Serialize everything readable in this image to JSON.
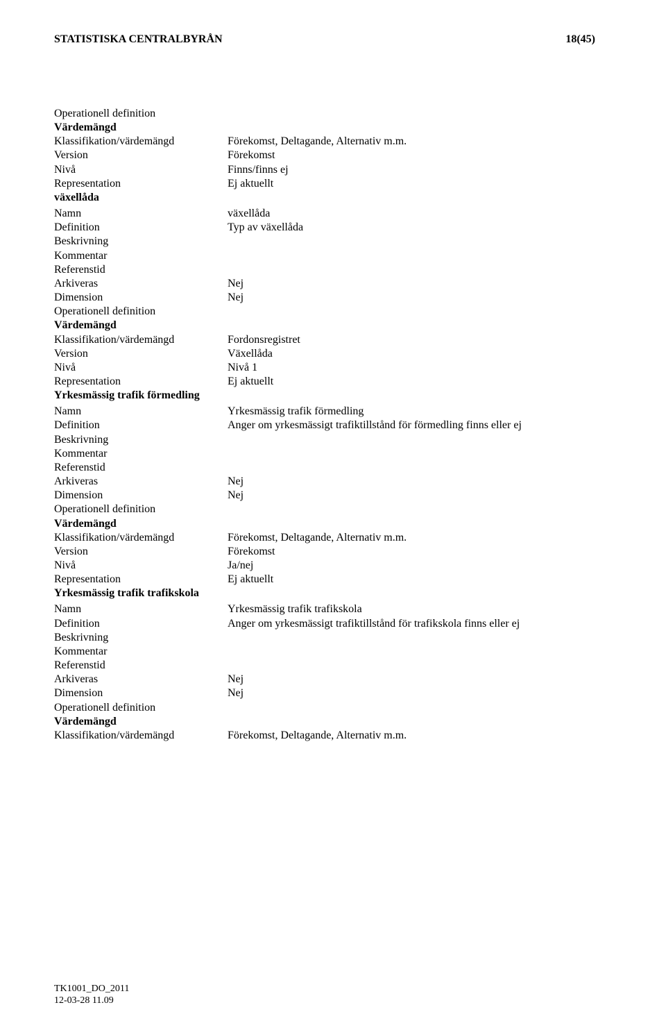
{
  "header": {
    "org": "STATISTISKA CENTRALBYRÅN",
    "page": "18(45)"
  },
  "blocks": [
    {
      "type": "row",
      "label": "Operationell definition",
      "value": ""
    },
    {
      "type": "heading",
      "text": "Värdemängd"
    },
    {
      "type": "row",
      "label": "Klassifikation/värdemängd",
      "value": "Förekomst, Deltagande, Alternativ m.m."
    },
    {
      "type": "row",
      "label": "Version",
      "value": "Förekomst"
    },
    {
      "type": "row",
      "label": "Nivå",
      "value": "Finns/finns ej"
    },
    {
      "type": "row",
      "label": "Representation",
      "value": "Ej aktuellt"
    },
    {
      "type": "heading",
      "text": "växellåda",
      "gap_after": true
    },
    {
      "type": "row",
      "label": "Namn",
      "value": "växellåda"
    },
    {
      "type": "row",
      "label": "Definition",
      "value": "Typ av växellåda"
    },
    {
      "type": "row",
      "label": "Beskrivning",
      "value": ""
    },
    {
      "type": "row",
      "label": "Kommentar",
      "value": ""
    },
    {
      "type": "row",
      "label": "Referenstid",
      "value": ""
    },
    {
      "type": "row",
      "label": "Arkiveras",
      "value": "Nej"
    },
    {
      "type": "row",
      "label": "Dimension",
      "value": "Nej"
    },
    {
      "type": "row",
      "label": "Operationell definition",
      "value": ""
    },
    {
      "type": "heading",
      "text": "Värdemängd"
    },
    {
      "type": "row",
      "label": "Klassifikation/värdemängd",
      "value": "Fordonsregistret"
    },
    {
      "type": "row",
      "label": "Version",
      "value": "Växellåda"
    },
    {
      "type": "row",
      "label": "Nivå",
      "value": "Nivå 1"
    },
    {
      "type": "row",
      "label": "Representation",
      "value": "Ej aktuellt"
    },
    {
      "type": "heading",
      "text": "Yrkesmässig trafik förmedling",
      "gap_after": true
    },
    {
      "type": "row",
      "label": "Namn",
      "value": "Yrkesmässig trafik förmedling"
    },
    {
      "type": "row",
      "label": "Definition",
      "value": "Anger om yrkesmässigt trafiktillstånd för förmedling finns eller ej"
    },
    {
      "type": "row",
      "label": "Beskrivning",
      "value": ""
    },
    {
      "type": "row",
      "label": "Kommentar",
      "value": ""
    },
    {
      "type": "row",
      "label": "Referenstid",
      "value": ""
    },
    {
      "type": "row",
      "label": "Arkiveras",
      "value": "Nej"
    },
    {
      "type": "row",
      "label": "Dimension",
      "value": "Nej"
    },
    {
      "type": "row",
      "label": "Operationell definition",
      "value": ""
    },
    {
      "type": "heading",
      "text": "Värdemängd"
    },
    {
      "type": "row",
      "label": "Klassifikation/värdemängd",
      "value": "Förekomst, Deltagande, Alternativ m.m."
    },
    {
      "type": "row",
      "label": "Version",
      "value": "Förekomst"
    },
    {
      "type": "row",
      "label": "Nivå",
      "value": "Ja/nej"
    },
    {
      "type": "row",
      "label": "Representation",
      "value": "Ej aktuellt"
    },
    {
      "type": "heading",
      "text": "Yrkesmässig trafik trafikskola",
      "gap_after": true
    },
    {
      "type": "row",
      "label": "Namn",
      "value": "Yrkesmässig trafik trafikskola"
    },
    {
      "type": "row",
      "label": "Definition",
      "value": "Anger om yrkesmässigt trafiktillstånd för trafikskola finns eller ej"
    },
    {
      "type": "row",
      "label": "Beskrivning",
      "value": ""
    },
    {
      "type": "row",
      "label": "Kommentar",
      "value": ""
    },
    {
      "type": "row",
      "label": "Referenstid",
      "value": ""
    },
    {
      "type": "row",
      "label": "Arkiveras",
      "value": "Nej"
    },
    {
      "type": "row",
      "label": "Dimension",
      "value": "Nej"
    },
    {
      "type": "row",
      "label": "Operationell definition",
      "value": ""
    },
    {
      "type": "heading",
      "text": "Värdemängd"
    },
    {
      "type": "row",
      "label": "Klassifikation/värdemängd",
      "value": "Förekomst, Deltagande, Alternativ m.m."
    }
  ],
  "footer": {
    "doc_id": "TK1001_DO_2011",
    "timestamp": "12-03-28 11.09"
  }
}
